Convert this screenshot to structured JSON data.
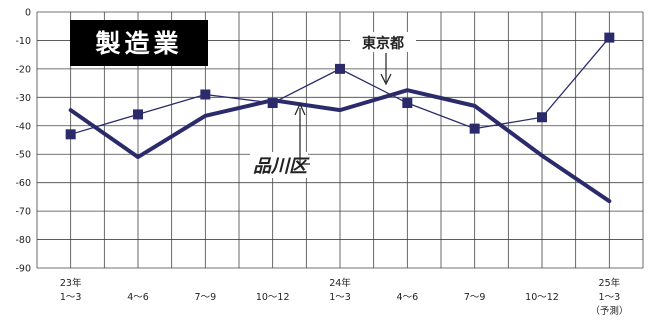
{
  "chart_data": {
    "type": "line",
    "title": "製造業",
    "ylim": [
      -90,
      0
    ],
    "y_ticks": [
      "0",
      "-10",
      "-20",
      "-30",
      "-40",
      "-50",
      "-60",
      "-70",
      "-80",
      "-90"
    ],
    "categories": [
      {
        "year": "23年",
        "period": "1～3",
        "note": ""
      },
      {
        "year": "",
        "period": "4～6",
        "note": ""
      },
      {
        "year": "",
        "period": "7～9",
        "note": ""
      },
      {
        "year": "",
        "period": "10～12",
        "note": ""
      },
      {
        "year": "24年",
        "period": "1～3",
        "note": ""
      },
      {
        "year": "",
        "period": "4～6",
        "note": ""
      },
      {
        "year": "",
        "period": "7～9",
        "note": ""
      },
      {
        "year": "",
        "period": "10～12",
        "note": ""
      },
      {
        "year": "25年",
        "period": "1～3",
        "note": "（予測）"
      }
    ],
    "grid": true,
    "series": [
      {
        "name": "東京都",
        "color": "#2b2b6b",
        "marker": "square",
        "values": [
          -43,
          -36,
          -29,
          -32,
          -20,
          -32,
          -41,
          -37,
          -9
        ]
      },
      {
        "name": "品川区",
        "color": "#2b2b6b",
        "marker": "none",
        "values": [
          -34.5,
          -51,
          -36.5,
          -31,
          -34.5,
          -27.5,
          -33,
          -50.5,
          -66.5
        ]
      }
    ]
  },
  "annotations": {
    "tokyo_label": "東京都",
    "shinagawa_label": "品川区"
  },
  "colors": {
    "grid": "#444444",
    "series": "#2b2b6b",
    "title_bg": "#000000",
    "title_fg": "#ffffff"
  }
}
